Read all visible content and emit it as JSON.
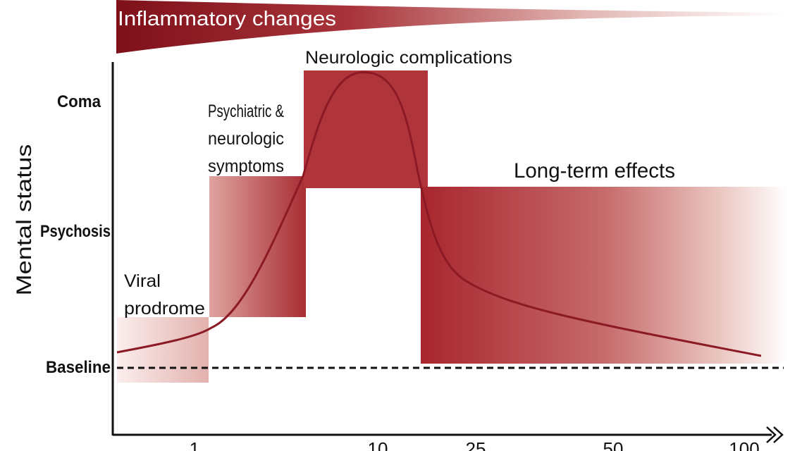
{
  "diagram": {
    "inflammation_label": "Inflammatory changes",
    "y_axis_label": "Mental status",
    "y_levels": {
      "coma": "Coma",
      "psychosis": "Psychosis",
      "baseline": "Baseline"
    },
    "x_ticks": [
      "1",
      "10",
      "25",
      "50",
      "100"
    ],
    "phases": {
      "viral_prodrome": [
        "Viral",
        "prodrome"
      ],
      "psychiatric": [
        "Psychiatric &",
        "neurologic",
        "symptoms"
      ],
      "neurologic": "Neurologic complications",
      "long_term": "Long-term effects"
    },
    "colors": {
      "dark_red": "#8b1a24",
      "mid_red": "#b0353b",
      "light_red": "#e6b6b3",
      "axis": "#111111"
    }
  }
}
